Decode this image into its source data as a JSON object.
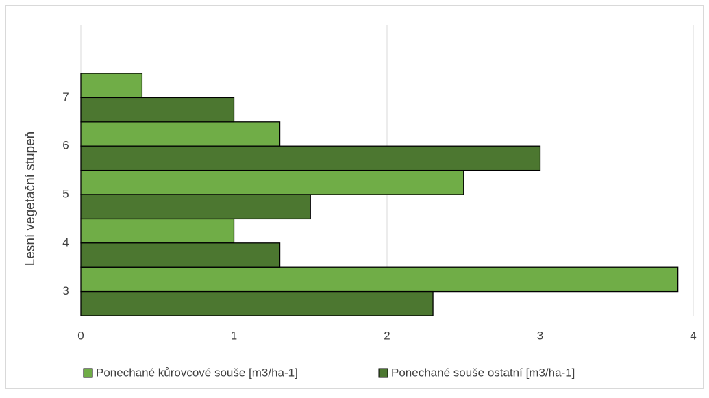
{
  "chart_data": {
    "type": "hbar",
    "y_label": "Lesní vegetační stupeň",
    "categories": [
      "3",
      "4",
      "5",
      "6",
      "7"
    ],
    "series": [
      {
        "name": "Ponechané kůrovcové souše [m3/ha-1]",
        "color": "#70ad47",
        "values": [
          3.9,
          1.0,
          2.5,
          1.3,
          0.4
        ]
      },
      {
        "name": "Ponechané souše ostatní [m3/ha-1]",
        "color": "#4c7730",
        "values": [
          2.3,
          1.3,
          1.5,
          3.0,
          1.0
        ]
      }
    ],
    "xlim": [
      0,
      4
    ],
    "xticks": [
      0,
      1,
      2,
      3,
      4
    ],
    "grid": true,
    "legend": "bottom"
  }
}
